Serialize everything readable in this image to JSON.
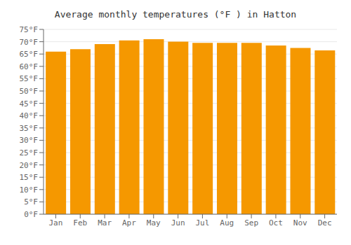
{
  "chart_data": {
    "type": "bar",
    "title": "Average monthly temperatures (°F ) in Hatton",
    "categories": [
      "Jan",
      "Feb",
      "Mar",
      "Apr",
      "May",
      "Jun",
      "Jul",
      "Aug",
      "Sep",
      "Oct",
      "Nov",
      "Dec"
    ],
    "values": [
      66,
      67,
      69,
      70.5,
      71,
      70,
      69.5,
      69.5,
      69.5,
      68.5,
      67.5,
      66.5
    ],
    "color": "#F59800",
    "ylim": [
      0,
      75
    ],
    "yticks": [
      {
        "value": 0,
        "label": "0°F"
      },
      {
        "value": 5,
        "label": "5°F"
      },
      {
        "value": 10,
        "label": "10°F"
      },
      {
        "value": 15,
        "label": "15°F"
      },
      {
        "value": 20,
        "label": "20°F"
      },
      {
        "value": 25,
        "label": "25°F"
      },
      {
        "value": 30,
        "label": "30°F"
      },
      {
        "value": 35,
        "label": "35°F"
      },
      {
        "value": 40,
        "label": "40°F"
      },
      {
        "value": 45,
        "label": "45°F"
      },
      {
        "value": 50,
        "label": "50°F"
      },
      {
        "value": 55,
        "label": "55°F"
      },
      {
        "value": 60,
        "label": "60°F"
      },
      {
        "value": 65,
        "label": "65°F"
      },
      {
        "value": 70,
        "label": "70°F"
      },
      {
        "value": 75,
        "label": "75°F"
      }
    ],
    "grid": true
  }
}
